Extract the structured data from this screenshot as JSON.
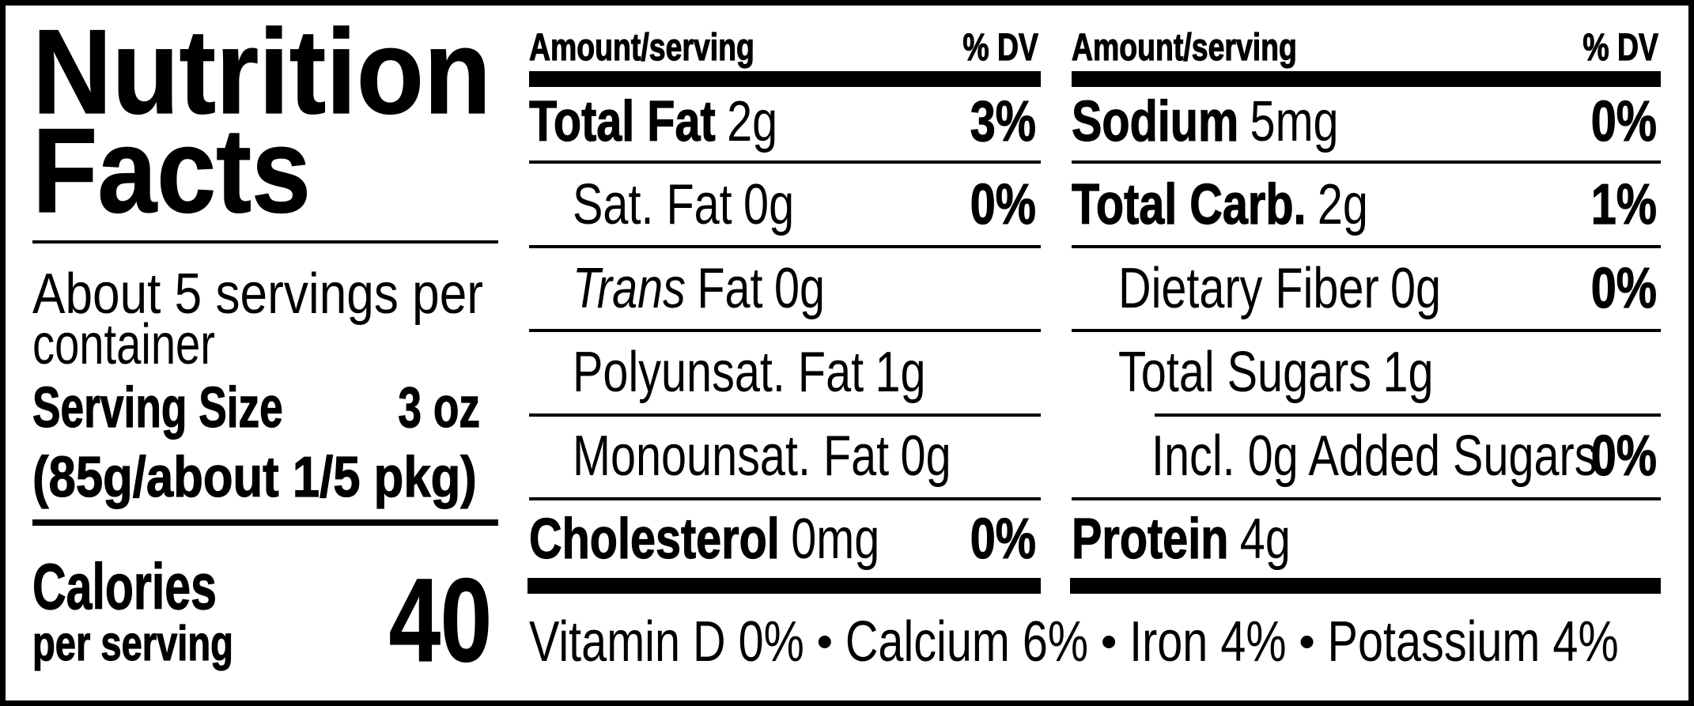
{
  "title_lines": [
    "Nutrition",
    "Facts"
  ],
  "servings_lines": [
    "About 5 servings per",
    "container"
  ],
  "serving_size": {
    "label": "Serving Size",
    "amount": "3 oz",
    "detail": "(85g/about 1/5 pkg)"
  },
  "calories": {
    "label": "Calories",
    "sublabel": "per serving",
    "value": 40
  },
  "columns": [
    {
      "header": {
        "amount": "Amount/serving",
        "dv": "% DV"
      },
      "rows": [
        {
          "name": "Total Fat",
          "amount": "2g",
          "dv": "3%"
        },
        {
          "name": "Sat. Fat",
          "amount": "0g",
          "dv": "0%"
        },
        {
          "name_italic": "Trans",
          "name": "Fat",
          "amount": "0g"
        },
        {
          "name": "Polyunsat. Fat",
          "amount": "1g"
        },
        {
          "name": "Monounsat. Fat",
          "amount": "0g"
        },
        {
          "name": "Cholesterol",
          "amount": "0mg",
          "dv": "0%"
        }
      ]
    },
    {
      "header": {
        "amount": "Amount/serving",
        "dv": "% DV"
      },
      "rows": [
        {
          "name": "Sodium",
          "amount": "5mg",
          "dv": "0%"
        },
        {
          "name": "Total Carb.",
          "amount": "2g",
          "dv": "1%"
        },
        {
          "name": "Dietary Fiber",
          "amount": "0g",
          "dv": "0%"
        },
        {
          "name": "Total Sugars",
          "amount": "1g"
        },
        {
          "name": "Incl. 0g Added Sugars",
          "dv": "0%"
        },
        {
          "name": "Protein",
          "amount": "4g"
        }
      ]
    }
  ],
  "footer": [
    "Vitamin D 0%",
    "Calcium 6%",
    "Iron 4%",
    "Potassium 4%"
  ]
}
